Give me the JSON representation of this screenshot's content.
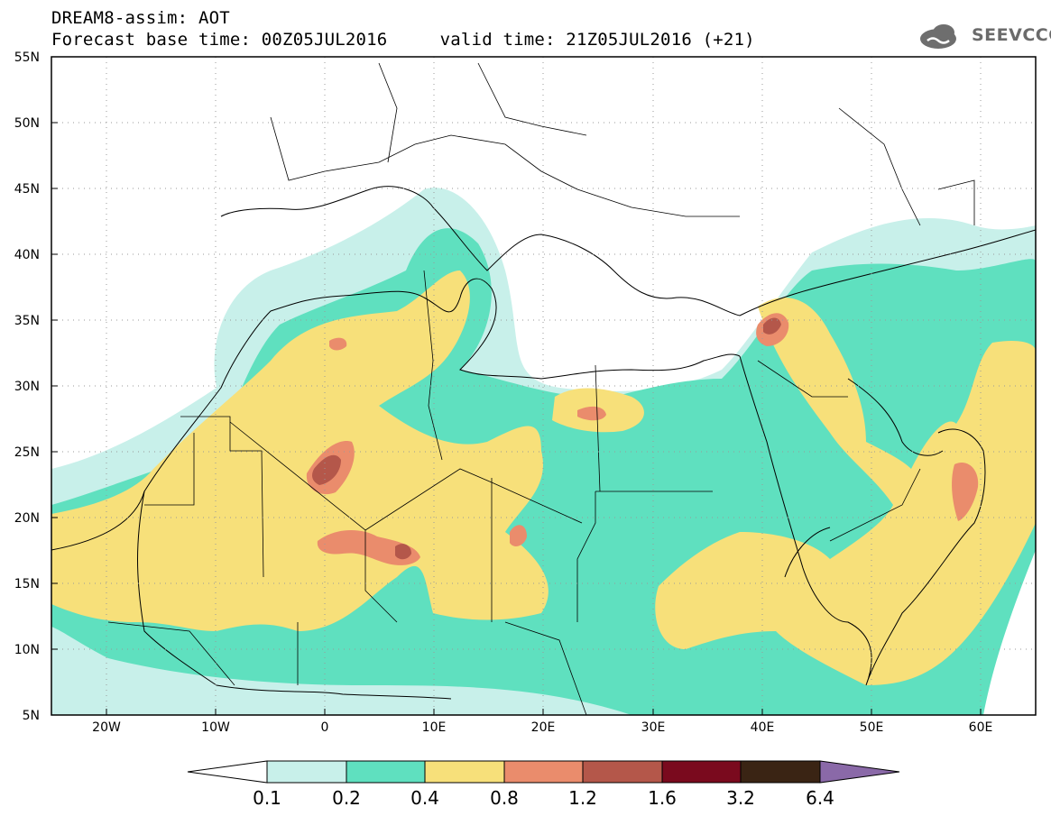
{
  "header": {
    "title": "DREAM8-assim: AOT",
    "subtitle": "Forecast base time: 00Z05JUL2016     valid time: 21Z05JUL2016 (+21)",
    "logo_text": "SEEVCCC"
  },
  "map": {
    "latitude_labels": [
      "55N",
      "50N",
      "45N",
      "40N",
      "35N",
      "30N",
      "25N",
      "20N",
      "15N",
      "10N",
      "5N"
    ],
    "longitude_labels": [
      "20W",
      "10W",
      "0",
      "10E",
      "20E",
      "30E",
      "40E",
      "50E",
      "60E"
    ]
  },
  "colorbar": {
    "levels": [
      "0.1",
      "0.2",
      "0.4",
      "0.8",
      "1.2",
      "1.6",
      "3.2",
      "6.4"
    ],
    "colors": [
      "#ffffff",
      "#c8f0ea",
      "#5fe0bf",
      "#f7e07a",
      "#ea8c6c",
      "#b4574a",
      "#7a0a1e",
      "#3a2414",
      "#8a69a8"
    ]
  }
}
